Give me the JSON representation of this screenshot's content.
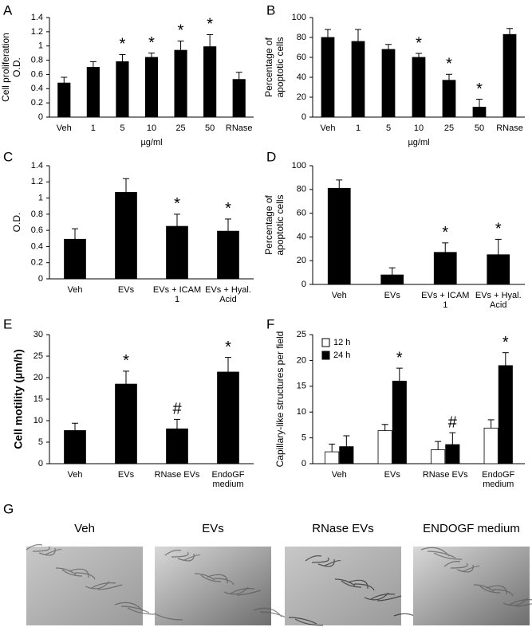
{
  "chart_data": [
    {
      "type": "bar",
      "panel": "A",
      "ylabel": [
        "Cell proliferation",
        "O.D."
      ],
      "xlabel": "µg/ml",
      "categories": [
        "Veh",
        "1",
        "5",
        "10",
        "25",
        "50",
        "RNase"
      ],
      "values": [
        0.48,
        0.7,
        0.78,
        0.84,
        0.94,
        0.99,
        0.53
      ],
      "errors": [
        0.08,
        0.08,
        0.1,
        0.06,
        0.13,
        0.17,
        0.1
      ],
      "annotations": [
        null,
        null,
        "*",
        "*",
        "*",
        "*",
        null
      ],
      "color": "#000000",
      "ylim": [
        0,
        1.4
      ],
      "yticks": [
        0,
        0.2,
        0.4,
        0.6,
        0.8,
        1,
        1.2,
        1.4
      ]
    },
    {
      "type": "bar",
      "panel": "B",
      "ylabel": [
        "Percentage of",
        "apoptotic cells"
      ],
      "xlabel": "µg/ml",
      "categories": [
        "Veh",
        "1",
        "5",
        "10",
        "25",
        "50",
        "RNase"
      ],
      "values": [
        80,
        76,
        68,
        60,
        37,
        10,
        83
      ],
      "errors": [
        8,
        12,
        5,
        4,
        6,
        8,
        6
      ],
      "annotations": [
        null,
        null,
        null,
        "*",
        "*",
        "*",
        null
      ],
      "color": "#000000",
      "ylim": [
        0,
        100
      ],
      "yticks": [
        0,
        20,
        40,
        60,
        80,
        100
      ]
    },
    {
      "type": "bar",
      "panel": "C",
      "ylabel": [
        "O.D."
      ],
      "categories": [
        "Veh",
        "EVs",
        "EVs + ICAM 1",
        "EVs + Hyal. Acid"
      ],
      "values": [
        0.49,
        1.07,
        0.65,
        0.59
      ],
      "errors": [
        0.13,
        0.17,
        0.15,
        0.15
      ],
      "annotations": [
        null,
        null,
        "*",
        "*"
      ],
      "color": "#000000",
      "ylim": [
        0,
        1.4
      ],
      "yticks": [
        0,
        0.2,
        0.4,
        0.6,
        0.8,
        1,
        1.2,
        1.4
      ]
    },
    {
      "type": "bar",
      "panel": "D",
      "ylabel": [
        "Percentage of",
        "apoptotic cells"
      ],
      "categories": [
        "Veh",
        "EVs",
        "EVs + ICAM 1",
        "EVs + Hyal. Acid"
      ],
      "values": [
        81,
        8,
        27,
        25
      ],
      "errors": [
        7,
        6,
        8,
        13
      ],
      "annotations": [
        null,
        null,
        "*",
        "*"
      ],
      "color": "#000000",
      "ylim": [
        0,
        100
      ],
      "yticks": [
        0,
        20,
        40,
        60,
        80,
        100
      ]
    },
    {
      "type": "bar",
      "panel": "E",
      "ylabel": [
        "Cell motility (µm/h)"
      ],
      "categories": [
        "Veh",
        "EVs",
        "RNase EVs",
        "EndoGF medium"
      ],
      "values": [
        7.7,
        18.5,
        8.1,
        21.3
      ],
      "errors": [
        1.7,
        3.0,
        2.2,
        3.4
      ],
      "annotations": [
        null,
        "*",
        "#",
        "*"
      ],
      "color": "#000000",
      "ylim": [
        0,
        30
      ],
      "yticks": [
        0,
        5,
        10,
        15,
        20,
        25,
        30
      ]
    },
    {
      "type": "bar",
      "panel": "F",
      "ylabel": [
        "Capillary-like structures per field"
      ],
      "categories": [
        "Veh",
        "EVs",
        "RNase EVs",
        "EndoGF medium"
      ],
      "series": [
        {
          "name": "12 h",
          "color": "#ffffff",
          "values": [
            2.3,
            6.4,
            2.7,
            6.9
          ],
          "errors": [
            1.5,
            1.2,
            1.6,
            1.6
          ],
          "annotations": [
            null,
            null,
            null,
            null
          ]
        },
        {
          "name": "24 h",
          "color": "#000000",
          "values": [
            3.3,
            16,
            3.7,
            19
          ],
          "errors": [
            2.1,
            2.5,
            2.3,
            2.5
          ],
          "annotations": [
            null,
            "*",
            "#",
            "*"
          ]
        }
      ],
      "legend": "top-left",
      "ylim": [
        0,
        25
      ],
      "yticks": [
        0,
        5,
        10,
        15,
        20,
        25
      ]
    }
  ],
  "panel_g": {
    "panel": "G",
    "labels": [
      "Veh",
      "EVs",
      "RNase EVs",
      "ENDOGF medium"
    ]
  }
}
